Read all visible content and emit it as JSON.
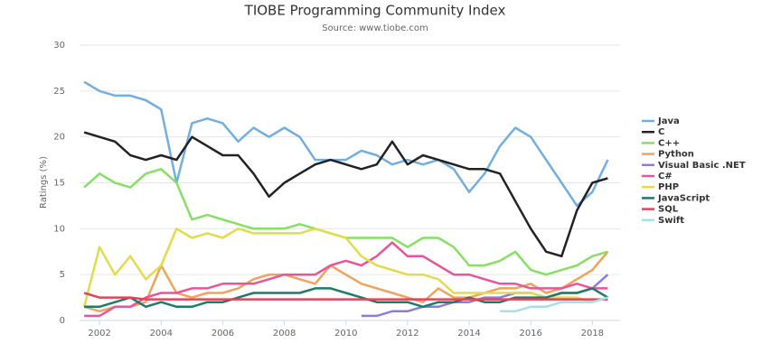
{
  "chart_data": {
    "type": "line",
    "title": "TIOBE Programming Community Index",
    "subtitle": "Source: www.tiobe.com",
    "y_label": "Ratings (%)",
    "x": [
      2001.5,
      2002,
      2002.5,
      2003,
      2003.5,
      2004,
      2004.5,
      2005,
      2005.5,
      2006,
      2006.5,
      2007,
      2007.5,
      2008,
      2008.5,
      2009,
      2009.5,
      2010,
      2010.5,
      2011,
      2011.5,
      2012,
      2012.5,
      2013,
      2013.5,
      2014,
      2014.5,
      2015,
      2015.5,
      2016,
      2016.5,
      2017,
      2017.5,
      2018,
      2018.5
    ],
    "xlim": [
      2001.35,
      2018.9
    ],
    "xticks": [
      2002,
      2004,
      2006,
      2008,
      2010,
      2012,
      2014,
      2016,
      2018
    ],
    "ylim": [
      0,
      30
    ],
    "yticks": [
      0,
      5,
      10,
      15,
      20,
      25,
      30
    ],
    "grid": true,
    "legend": "right",
    "series": [
      {
        "name": "Java",
        "color": "#72aee0",
        "values": [
          26,
          25,
          24.5,
          24.5,
          24,
          23,
          15,
          21.5,
          22,
          21.5,
          19.5,
          21,
          20,
          21,
          20,
          17.5,
          17.5,
          17.5,
          18.5,
          18,
          17,
          17.5,
          17,
          17.5,
          16.5,
          14,
          16,
          19,
          21,
          20,
          17.5,
          15,
          12.5,
          14,
          17.5
        ]
      },
      {
        "name": "C",
        "color": "#222222",
        "values": [
          20.5,
          20,
          19.5,
          18,
          17.5,
          18,
          17.5,
          20,
          19,
          18,
          18,
          16,
          13.5,
          15,
          16,
          17,
          17.5,
          17,
          16.5,
          17,
          19.5,
          17,
          18,
          17.5,
          17,
          16.5,
          16.5,
          16,
          13,
          10,
          7.5,
          7,
          12,
          15,
          15.5
        ]
      },
      {
        "name": "C++",
        "color": "#86e063",
        "values": [
          14.5,
          16,
          15,
          14.5,
          16,
          16.5,
          15,
          11,
          11.5,
          11,
          10.5,
          10,
          10,
          10,
          10.5,
          10,
          9.5,
          9,
          9,
          9,
          9,
          8,
          9,
          9,
          8,
          6,
          6,
          6.5,
          7.5,
          5.5,
          5,
          5.5,
          6,
          7,
          7.5
        ]
      },
      {
        "name": "Python",
        "color": "#f0a35a",
        "values": [
          1.5,
          1,
          1.5,
          1.5,
          2,
          6,
          3,
          2.5,
          3,
          3,
          3.5,
          4.5,
          5,
          5,
          4.5,
          4,
          6,
          5,
          4,
          3.5,
          3,
          2.5,
          2,
          3.5,
          2.5,
          2.5,
          3,
          3.5,
          3.5,
          4,
          3,
          3.5,
          4.5,
          5.5,
          7.5
        ]
      },
      {
        "name": "Visual Basic .NET",
        "color": "#8a7ed8",
        "values": [
          null,
          null,
          null,
          null,
          null,
          null,
          null,
          null,
          null,
          null,
          null,
          null,
          null,
          null,
          null,
          null,
          null,
          null,
          0.5,
          0.5,
          1,
          1,
          1.5,
          1.5,
          2,
          2,
          2.5,
          2.5,
          3,
          3,
          2.5,
          3,
          3,
          3.5,
          5
        ]
      },
      {
        "name": "C#",
        "color": "#e8559a",
        "values": [
          0.5,
          0.5,
          1.5,
          1.5,
          2.5,
          3,
          3,
          3.5,
          3.5,
          4,
          4,
          4,
          4.5,
          5,
          5,
          5,
          6,
          6.5,
          6,
          7,
          8.5,
          7,
          7,
          6,
          5,
          5,
          4.5,
          4,
          4,
          3.5,
          3.5,
          3.5,
          4,
          3.5,
          3.5
        ]
      },
      {
        "name": "PHP",
        "color": "#e2dc4a",
        "values": [
          1.5,
          8,
          5,
          7,
          4.5,
          6,
          10,
          9,
          9.5,
          9,
          10,
          9.5,
          9.5,
          9.5,
          9.5,
          10,
          9.5,
          9,
          7,
          6,
          5.5,
          5,
          5,
          4.5,
          3,
          3,
          3,
          3,
          3,
          3,
          2.5,
          2.5,
          2.5,
          2,
          2.5
        ]
      },
      {
        "name": "JavaScript",
        "color": "#1f7a6a",
        "values": [
          1.5,
          1.5,
          2,
          2.5,
          1.5,
          2,
          1.5,
          1.5,
          2,
          2,
          2.5,
          3,
          3,
          3,
          3,
          3.5,
          3.5,
          3,
          2.5,
          2,
          2,
          2,
          1.5,
          2,
          2,
          2.5,
          2,
          2,
          2.5,
          2.5,
          2.5,
          3,
          3,
          3.5,
          2.5
        ]
      },
      {
        "name": "SQL",
        "color": "#e0455a",
        "values": [
          3,
          2.5,
          2.5,
          2.5,
          2.3,
          2.3,
          2.3,
          2.3,
          2.3,
          2.3,
          2.3,
          2.3,
          2.3,
          2.3,
          2.3,
          2.3,
          2.3,
          2.3,
          2.3,
          2.3,
          2.3,
          2.3,
          2.3,
          2.3,
          2.3,
          2.3,
          2.3,
          2.3,
          2.3,
          2.3,
          2.3,
          2.3,
          2.3,
          2.3,
          2.3
        ]
      },
      {
        "name": "Swift",
        "color": "#a8e0ea",
        "values": [
          null,
          null,
          null,
          null,
          null,
          null,
          null,
          null,
          null,
          null,
          null,
          null,
          null,
          null,
          null,
          null,
          null,
          null,
          null,
          null,
          null,
          null,
          null,
          null,
          null,
          null,
          null,
          1,
          1,
          1.5,
          1.5,
          2,
          2,
          2,
          2.5
        ]
      }
    ]
  }
}
